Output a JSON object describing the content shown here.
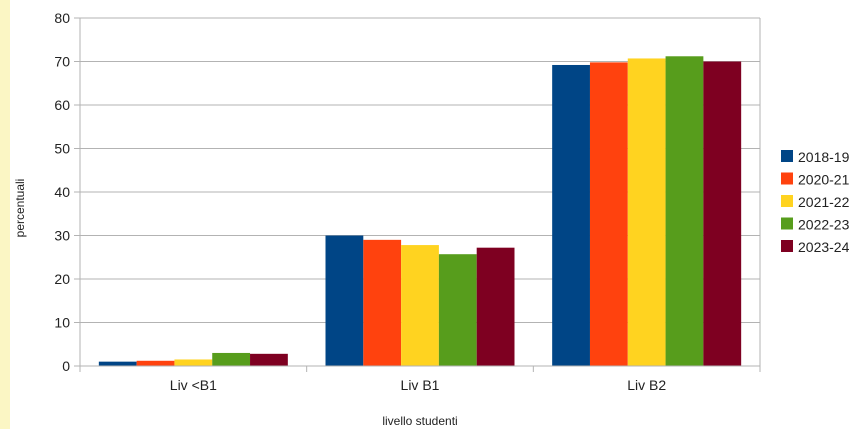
{
  "chart_data": {
    "type": "bar",
    "title": "",
    "xlabel": "livello studenti",
    "ylabel": "percentuali",
    "categories": [
      "Liv <B1",
      "Liv B1",
      "Liv B2"
    ],
    "ylim": [
      0,
      80
    ],
    "yticks": [
      0,
      10,
      20,
      30,
      40,
      50,
      60,
      70,
      80
    ],
    "grid": true,
    "legend_position": "right",
    "series": [
      {
        "name": "2018-19",
        "color": "#004586",
        "values": [
          1.0,
          30.0,
          69.2
        ]
      },
      {
        "name": "2020-21",
        "color": "#ff420e",
        "values": [
          1.2,
          29.0,
          69.8
        ]
      },
      {
        "name": "2021-22",
        "color": "#ffd320",
        "values": [
          1.5,
          27.8,
          70.7
        ]
      },
      {
        "name": "2022-23",
        "color": "#579d1c",
        "values": [
          3.0,
          25.7,
          71.2
        ]
      },
      {
        "name": "2023-24",
        "color": "#7e0021",
        "values": [
          2.8,
          27.2,
          70.0
        ]
      }
    ]
  }
}
